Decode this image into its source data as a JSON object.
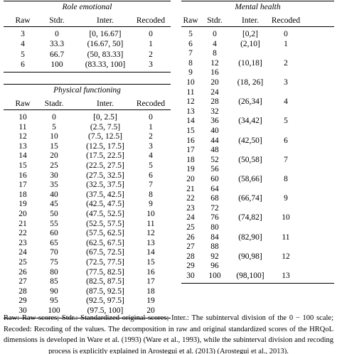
{
  "tables": [
    {
      "title": "Role emotional",
      "headers": [
        "Raw",
        "Stdr.",
        "Inter.",
        "Recoded"
      ],
      "rows": [
        [
          "3",
          "0",
          "[0, 16.67]",
          "0"
        ],
        [
          "4",
          "33.3",
          "(16.67, 50]",
          "1"
        ],
        [
          "5",
          "66.7",
          "(50, 83.33]",
          "2"
        ],
        [
          "6",
          "100",
          "(83.33, 100]",
          "3"
        ]
      ]
    },
    {
      "title": "Physical functioning",
      "headers": [
        "Raw",
        "Stadr.",
        "Inter.",
        "Recoded"
      ],
      "rows": [
        [
          "10",
          "0",
          "[0, 2.5]",
          "0"
        ],
        [
          "11",
          "5",
          "(2.5, 7.5]",
          "1"
        ],
        [
          "12",
          "10",
          "(7.5, 12.5]",
          "2"
        ],
        [
          "13",
          "15",
          "(12.5, 17.5]",
          "3"
        ],
        [
          "14",
          "20",
          "(17.5, 22.5]",
          "4"
        ],
        [
          "15",
          "25",
          "(22.5, 27.5]",
          "5"
        ],
        [
          "16",
          "30",
          "(27.5, 32.5]",
          "6"
        ],
        [
          "17",
          "35",
          "(32.5, 37.5]",
          "7"
        ],
        [
          "18",
          "40",
          "(37.5, 42.5]",
          "8"
        ],
        [
          "19",
          "45",
          "(42.5, 47.5]",
          "9"
        ],
        [
          "20",
          "50",
          "(47.5, 52.5]",
          "10"
        ],
        [
          "21",
          "55",
          "(52.5, 57.5]",
          "11"
        ],
        [
          "22",
          "60",
          "(57.5, 62.5]",
          "12"
        ],
        [
          "23",
          "65",
          "(62.5, 67.5]",
          "13"
        ],
        [
          "24",
          "70",
          "(67.5, 72.5]",
          "14"
        ],
        [
          "25",
          "75",
          "(72.5, 77.5]",
          "15"
        ],
        [
          "26",
          "80",
          "(77.5, 82.5]",
          "16"
        ],
        [
          "27",
          "85",
          "(82.5, 87.5]",
          "17"
        ],
        [
          "28",
          "90",
          "(87.5, 92.5]",
          "18"
        ],
        [
          "29",
          "95",
          "(92.5, 97.5]",
          "19"
        ],
        [
          "30",
          "100",
          "(97.5, 100]",
          "20"
        ]
      ]
    },
    {
      "title": "Mental health",
      "headers": [
        "Raw",
        "Stdr.",
        "Inter.",
        "Recoded"
      ],
      "rows": [
        [
          "5",
          "0",
          "[0,2]",
          "0"
        ],
        [
          "6",
          "4",
          "(2,10]",
          "1"
        ],
        [
          "7",
          "8"
        ],
        [
          "8",
          "12",
          "(10,18]",
          "2"
        ],
        [
          "9",
          "16"
        ],
        [
          "10",
          "20",
          "(18, 26]",
          "3"
        ],
        [
          "11",
          "24"
        ],
        [
          "12",
          "28",
          "(26,34]",
          "4"
        ],
        [
          "13",
          "32"
        ],
        [
          "14",
          "36",
          "(34,42]",
          "5"
        ],
        [
          "15",
          "40"
        ],
        [
          "16",
          "44",
          "(42,50]",
          "6"
        ],
        [
          "17",
          "48"
        ],
        [
          "18",
          "52",
          "(50,58]",
          "7"
        ],
        [
          "19",
          "56"
        ],
        [
          "20",
          "60",
          "(58,66]",
          "8"
        ],
        [
          "21",
          "64"
        ],
        [
          "22",
          "68",
          "(66,74]",
          "9"
        ],
        [
          "23",
          "72"
        ],
        [
          "24",
          "76",
          "(74,82]",
          "10"
        ],
        [
          "25",
          "80"
        ],
        [
          "26",
          "84",
          "(82,90]",
          "11"
        ],
        [
          "27",
          "88"
        ],
        [
          "28",
          "92",
          "(90,98]",
          "12"
        ],
        [
          "29",
          "96"
        ],
        [
          "30",
          "100",
          "(98,100]",
          "13"
        ]
      ]
    }
  ],
  "caption": "Raw: Raw scores; Stdr.: Standardized original scores; Inter.: The subinterval division of the 0 − 100 scale; Recoded: Recoding of the values. The decomposition in raw and original standardized scores of the HRQoL dimensions is developed in Ware et al. (1993) (Ware et al., 1993), while the subinterval division and recoding process is explicitly explained in Arostegui et al. (2013) (Arostegui et al., 2013)."
}
